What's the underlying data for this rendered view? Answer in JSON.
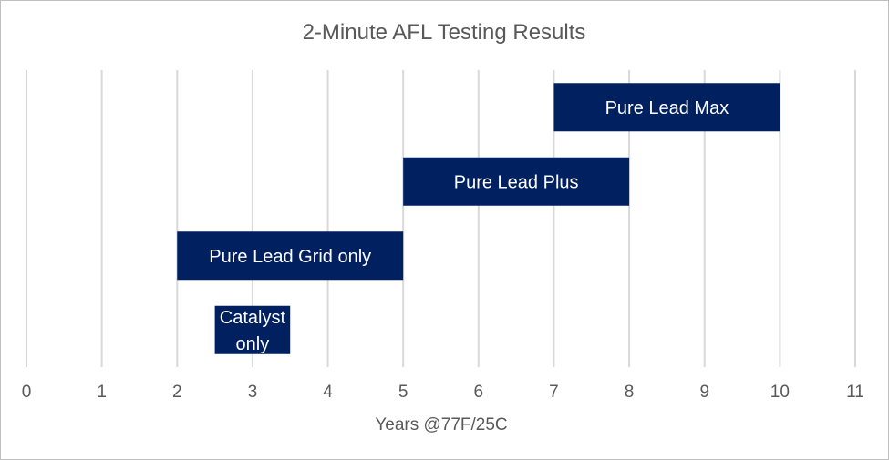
{
  "chart_data": {
    "type": "bar",
    "orientation": "horizontal-range",
    "title": "2-Minute AFL Testing Results",
    "xlabel": "Years @77F/25C",
    "ylabel": "",
    "xlim": [
      0,
      11
    ],
    "xticks": [
      "0",
      "1",
      "2",
      "3",
      "4",
      "5",
      "6",
      "7",
      "8",
      "9",
      "10",
      "11"
    ],
    "grid": "vertical",
    "bar_color": "#002060",
    "series": [
      {
        "label": "Pure Lead Max",
        "start": 7,
        "end": 10
      },
      {
        "label": "Pure Lead Plus",
        "start": 5,
        "end": 8
      },
      {
        "label": "Pure Lead Grid only",
        "start": 2,
        "end": 5
      },
      {
        "label": "Catalyst\nonly",
        "start": 2.5,
        "end": 3.5
      }
    ]
  }
}
